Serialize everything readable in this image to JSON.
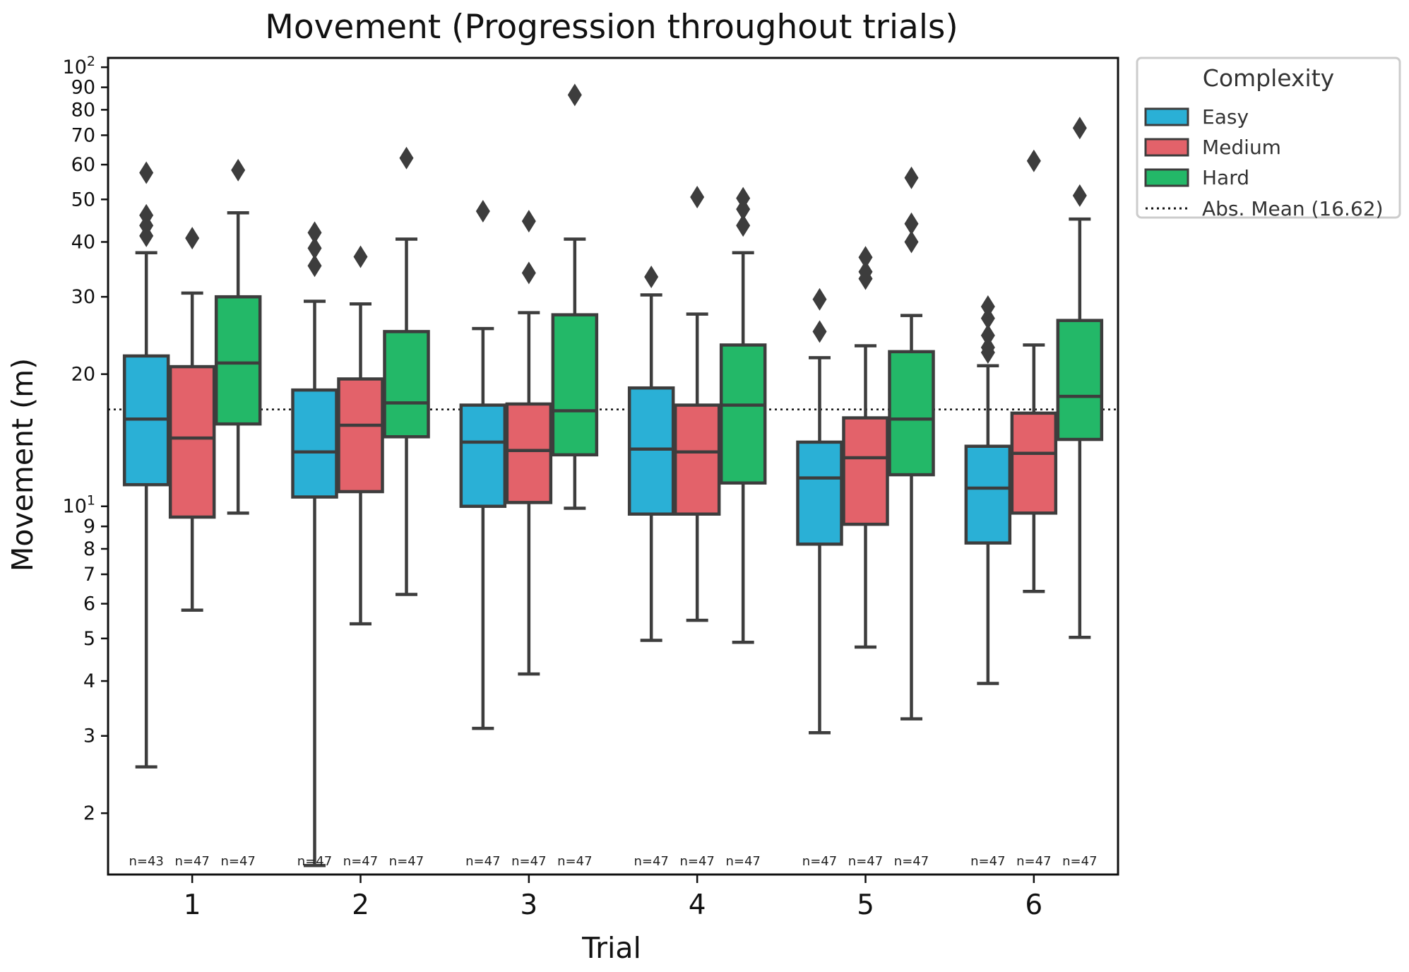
{
  "chart_data": {
    "type": "box",
    "title": "Movement (Progression throughout trials)",
    "xlabel": "Trial",
    "ylabel": "Movement (m)",
    "yscale": "log",
    "ylim": [
      1.45,
      105
    ],
    "categories": [
      "1",
      "2",
      "3",
      "4",
      "5",
      "6"
    ],
    "yticks": [
      {
        "value": 100,
        "label": "10",
        "sup": "2"
      },
      {
        "value": 90,
        "label": "90"
      },
      {
        "value": 80,
        "label": "80"
      },
      {
        "value": 70,
        "label": "70"
      },
      {
        "value": 60,
        "label": "60"
      },
      {
        "value": 50,
        "label": "50"
      },
      {
        "value": 40,
        "label": "40"
      },
      {
        "value": 30,
        "label": "30"
      },
      {
        "value": 20,
        "label": "20"
      },
      {
        "value": 10,
        "label": "10",
        "sup": "1"
      },
      {
        "value": 9,
        "label": "9"
      },
      {
        "value": 8,
        "label": "8"
      },
      {
        "value": 7,
        "label": "7"
      },
      {
        "value": 6,
        "label": "6"
      },
      {
        "value": 5,
        "label": "5"
      },
      {
        "value": 4,
        "label": "4"
      },
      {
        "value": 3,
        "label": "3"
      },
      {
        "value": 2,
        "label": "2"
      }
    ],
    "reference_line": {
      "value": 16.62,
      "label": "Abs. Mean (16.62)",
      "style": "dotted"
    },
    "legend": {
      "title": "Complexity",
      "placement": "outside top-right"
    },
    "series": [
      {
        "name": "Easy",
        "color": "#2ab0d6",
        "boxes": [
          {
            "whislo": 2.55,
            "q1": 11.2,
            "med": 15.8,
            "q3": 22.0,
            "whishi": 37.8,
            "fliers": [
              41.3,
              43.6,
              46.0,
              57.5
            ],
            "n": "n=43"
          },
          {
            "whislo": 1.52,
            "q1": 10.5,
            "med": 13.3,
            "q3": 18.4,
            "whishi": 29.3,
            "fliers": [
              35.3,
              38.7,
              42.0
            ],
            "n": "n=47"
          },
          {
            "whislo": 3.12,
            "q1": 10.0,
            "med": 14.0,
            "q3": 17.0,
            "whishi": 25.4,
            "fliers": [
              47.0
            ],
            "n": "n=47"
          },
          {
            "whislo": 4.95,
            "q1": 9.6,
            "med": 13.5,
            "q3": 18.6,
            "whishi": 30.3,
            "fliers": [
              33.3
            ],
            "n": "n=47"
          },
          {
            "whislo": 3.05,
            "q1": 8.2,
            "med": 11.6,
            "q3": 14.0,
            "whishi": 21.8,
            "fliers": [
              25.0,
              29.6
            ],
            "n": "n=47"
          },
          {
            "whislo": 3.95,
            "q1": 8.25,
            "med": 11.0,
            "q3": 13.7,
            "whishi": 20.9,
            "fliers": [
              22.4,
              23.0,
              24.5,
              26.8,
              28.5
            ],
            "n": "n=47"
          }
        ]
      },
      {
        "name": "Medium",
        "color": "#e3626a",
        "boxes": [
          {
            "whislo": 5.8,
            "q1": 9.45,
            "med": 14.3,
            "q3": 20.8,
            "whishi": 30.6,
            "fliers": [
              40.8
            ],
            "n": "n=47"
          },
          {
            "whislo": 5.4,
            "q1": 10.8,
            "med": 15.3,
            "q3": 19.5,
            "whishi": 28.9,
            "fliers": [
              37.0
            ],
            "n": "n=47"
          },
          {
            "whislo": 4.15,
            "q1": 10.2,
            "med": 13.4,
            "q3": 17.1,
            "whishi": 27.6,
            "fliers": [
              34.0,
              44.6
            ],
            "n": "n=47"
          },
          {
            "whislo": 5.5,
            "q1": 9.6,
            "med": 13.3,
            "q3": 17.0,
            "whishi": 27.4,
            "fliers": [
              50.6
            ],
            "n": "n=47"
          },
          {
            "whislo": 4.78,
            "q1": 9.1,
            "med": 12.9,
            "q3": 15.9,
            "whishi": 23.2,
            "fliers": [
              33.0,
              34.2,
              36.9
            ],
            "n": "n=47"
          },
          {
            "whislo": 6.4,
            "q1": 9.65,
            "med": 13.2,
            "q3": 16.3,
            "whishi": 23.3,
            "fliers": [
              61.2
            ],
            "n": "n=47"
          }
        ]
      },
      {
        "name": "Hard",
        "color": "#23b868",
        "boxes": [
          {
            "whislo": 9.65,
            "q1": 15.4,
            "med": 21.2,
            "q3": 30.0,
            "whishi": 46.6,
            "fliers": [
              58.3
            ],
            "n": "n=47"
          },
          {
            "whislo": 6.3,
            "q1": 14.4,
            "med": 17.2,
            "q3": 25.0,
            "whishi": 40.6,
            "fliers": [
              62.1
            ],
            "n": "n=47"
          },
          {
            "whislo": 9.9,
            "q1": 13.1,
            "med": 16.5,
            "q3": 27.3,
            "whishi": 40.6,
            "fliers": [
              86.5
            ],
            "n": "n=47"
          },
          {
            "whislo": 4.9,
            "q1": 11.3,
            "med": 17.0,
            "q3": 23.3,
            "whishi": 37.8,
            "fliers": [
              43.6,
              47.5,
              50.3
            ],
            "n": "n=47"
          },
          {
            "whislo": 3.28,
            "q1": 11.8,
            "med": 15.8,
            "q3": 22.5,
            "whishi": 27.2,
            "fliers": [
              40.0,
              44.0,
              56.0
            ],
            "n": "n=47"
          },
          {
            "whislo": 5.03,
            "q1": 14.2,
            "med": 17.8,
            "q3": 26.5,
            "whishi": 45.1,
            "fliers": [
              51.0,
              72.7
            ],
            "n": "n=47"
          }
        ]
      }
    ]
  }
}
